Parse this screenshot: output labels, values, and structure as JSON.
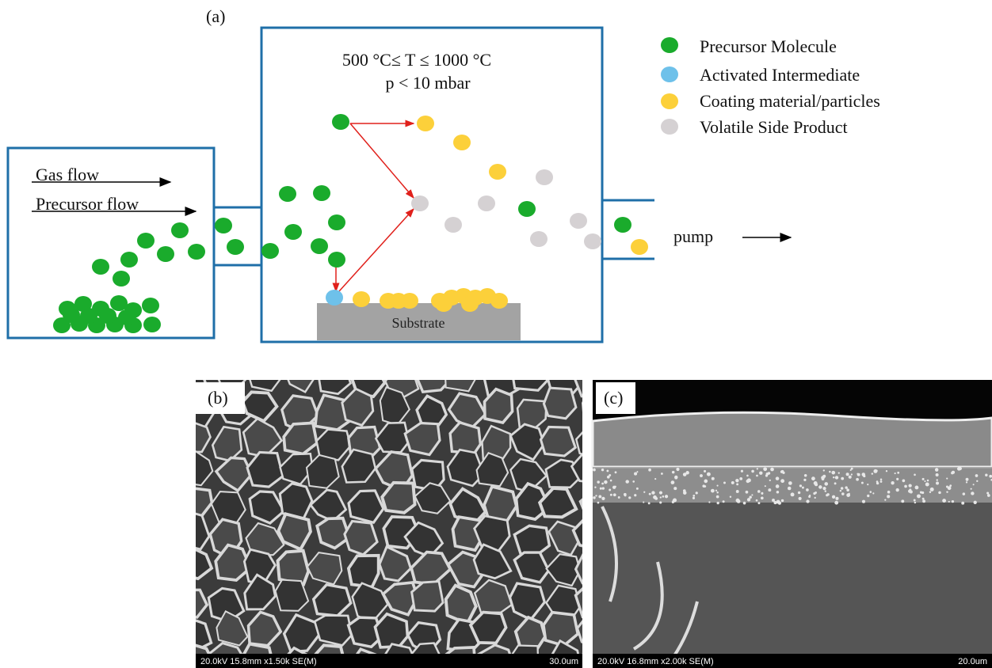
{
  "panel_a": {
    "label": "(a)",
    "conditions": [
      "500 °C≤ T ≤ 1000 °C",
      "p < 10 mbar"
    ],
    "legend": [
      "Precursor Molecule",
      "Activated Intermediate",
      "Coating material/particles",
      "Volatile Side Product"
    ],
    "inlet": [
      "Gas flow",
      "Precursor flow"
    ],
    "outlet": "pump",
    "substrate": "Substrate"
  },
  "panel_b": {
    "label": "(b)",
    "info": "20.0kV 15.8mm x1.50k SE(M)",
    "scale": "30.0um"
  },
  "panel_c": {
    "label": "(c)",
    "info": "20.0kV 16.8mm x2.00k SE(M)",
    "scale": "20.0um"
  }
}
